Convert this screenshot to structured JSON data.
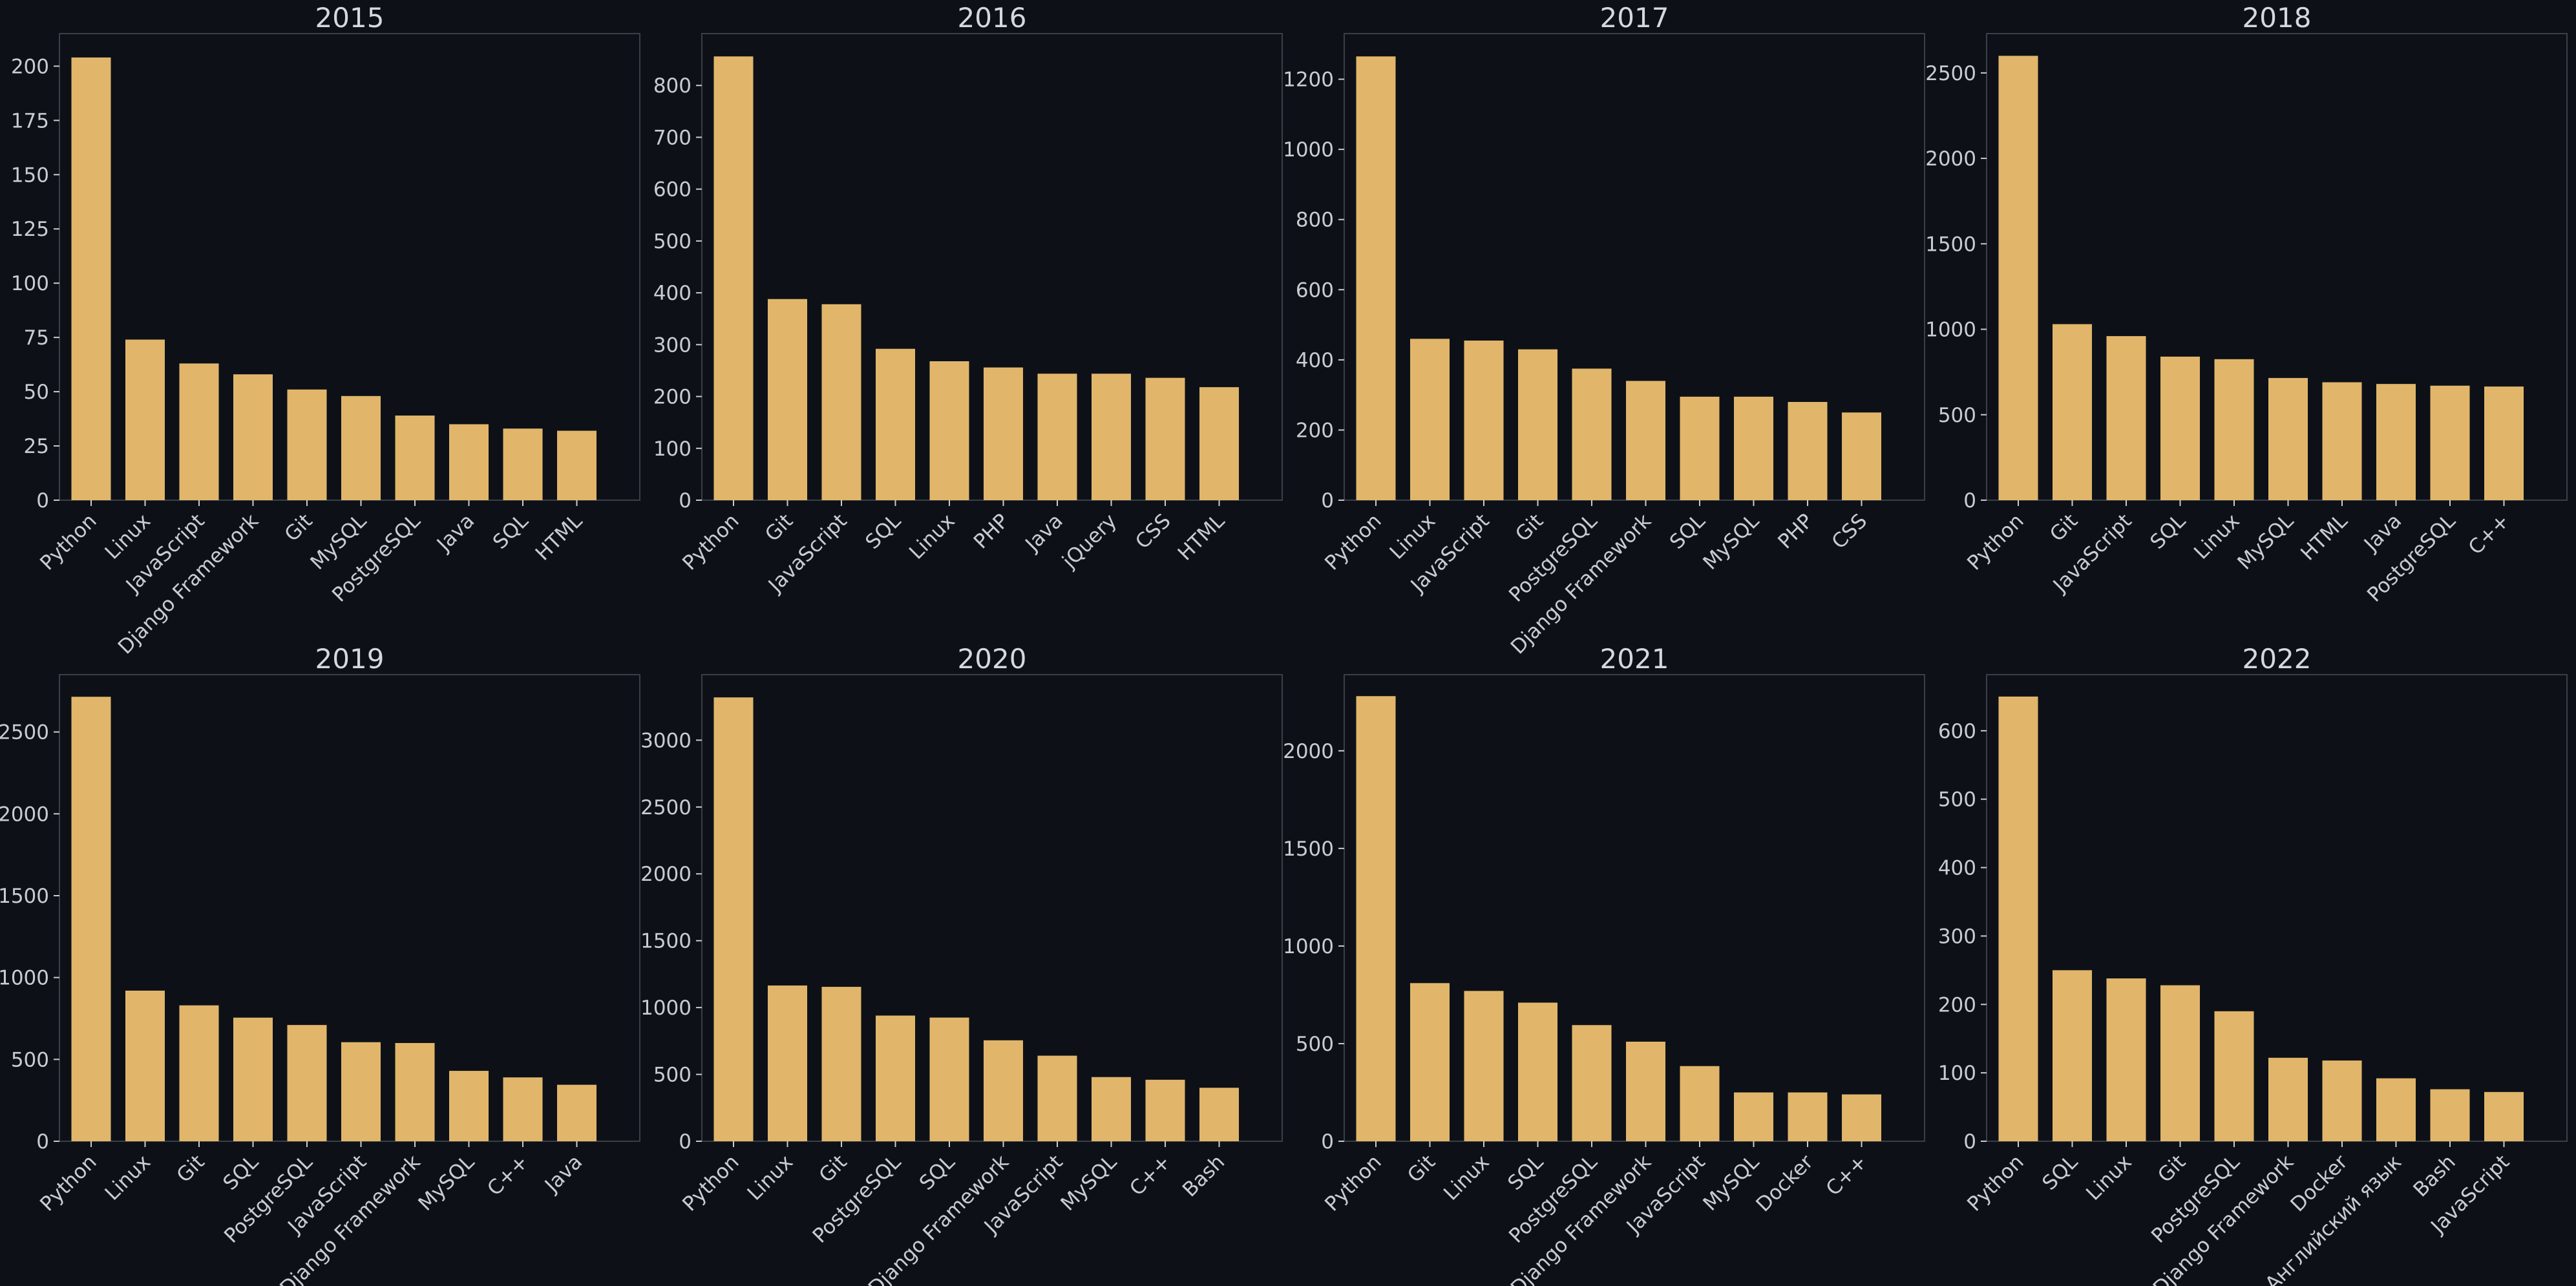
{
  "colors": {
    "background": "#0d1117",
    "bar": "#e1b66b",
    "axis": "#3a3f47",
    "text": "#c9ccd0"
  },
  "chart_data": [
    {
      "type": "bar",
      "title": "2015",
      "xlabel": "",
      "ylabel": "",
      "ylim": [
        0,
        215
      ],
      "yticks": [
        0,
        25,
        50,
        75,
        100,
        125,
        150,
        175,
        200
      ],
      "categories": [
        "Python",
        "Linux",
        "JavaScript",
        "Django Framework",
        "Git",
        "MySQL",
        "PostgreSQL",
        "Java",
        "SQL",
        "HTML"
      ],
      "values": [
        204,
        74,
        63,
        58,
        51,
        48,
        39,
        35,
        33,
        32
      ]
    },
    {
      "type": "bar",
      "title": "2016",
      "xlabel": "",
      "ylabel": "",
      "ylim": [
        0,
        900
      ],
      "yticks": [
        0,
        100,
        200,
        300,
        400,
        500,
        600,
        700,
        800
      ],
      "categories": [
        "Python",
        "Git",
        "JavaScript",
        "SQL",
        "Linux",
        "PHP",
        "Java",
        "jQuery",
        "CSS",
        "HTML"
      ],
      "values": [
        856,
        388,
        378,
        292,
        268,
        256,
        244,
        244,
        236,
        218
      ]
    },
    {
      "type": "bar",
      "title": "2017",
      "xlabel": "",
      "ylabel": "",
      "ylim": [
        0,
        1330
      ],
      "yticks": [
        0,
        200,
        400,
        600,
        800,
        1000,
        1200
      ],
      "categories": [
        "Python",
        "Linux",
        "JavaScript",
        "Git",
        "PostgreSQL",
        "Django Framework",
        "SQL",
        "MySQL",
        "PHP",
        "CSS"
      ],
      "values": [
        1265,
        460,
        455,
        430,
        375,
        340,
        295,
        295,
        280,
        250
      ]
    },
    {
      "type": "bar",
      "title": "2018",
      "xlabel": "",
      "ylabel": "",
      "ylim": [
        0,
        2730
      ],
      "yticks": [
        0,
        500,
        1000,
        1500,
        2000,
        2500
      ],
      "categories": [
        "Python",
        "Git",
        "JavaScript",
        "SQL",
        "Linux",
        "MySQL",
        "HTML",
        "Java",
        "PostgreSQL",
        "C++"
      ],
      "values": [
        2600,
        1030,
        960,
        840,
        825,
        715,
        690,
        680,
        670,
        665
      ]
    },
    {
      "type": "bar",
      "title": "2019",
      "xlabel": "",
      "ylabel": "",
      "ylim": [
        0,
        2850
      ],
      "yticks": [
        0,
        500,
        1000,
        1500,
        2000,
        2500
      ],
      "categories": [
        "Python",
        "Linux",
        "Git",
        "SQL",
        "PostgreSQL",
        "JavaScript",
        "Django Framework",
        "MySQL",
        "C++",
        "Java"
      ],
      "values": [
        2715,
        920,
        830,
        755,
        710,
        605,
        600,
        430,
        390,
        345
      ]
    },
    {
      "type": "bar",
      "title": "2020",
      "xlabel": "",
      "ylabel": "",
      "ylim": [
        0,
        3490
      ],
      "yticks": [
        0,
        500,
        1000,
        1500,
        2000,
        2500,
        3000
      ],
      "categories": [
        "Python",
        "Linux",
        "Git",
        "PostgreSQL",
        "SQL",
        "Django Framework",
        "JavaScript",
        "MySQL",
        "C++",
        "Bash"
      ],
      "values": [
        3320,
        1165,
        1155,
        940,
        925,
        755,
        640,
        480,
        460,
        400
      ]
    },
    {
      "type": "bar",
      "title": "2021",
      "xlabel": "",
      "ylabel": "",
      "ylim": [
        0,
        2390
      ],
      "yticks": [
        0,
        500,
        1000,
        1500,
        2000
      ],
      "categories": [
        "Python",
        "Git",
        "Linux",
        "SQL",
        "PostgreSQL",
        "Django Framework",
        "JavaScript",
        "MySQL",
        "Docker",
        "C++"
      ],
      "values": [
        2280,
        810,
        770,
        710,
        595,
        510,
        385,
        250,
        250,
        240
      ]
    },
    {
      "type": "bar",
      "title": "2022",
      "xlabel": "",
      "ylabel": "",
      "ylim": [
        0,
        682
      ],
      "yticks": [
        0,
        100,
        200,
        300,
        400,
        500,
        600
      ],
      "categories": [
        "Python",
        "SQL",
        "Linux",
        "Git",
        "PostgreSQL",
        "Django Framework",
        "Docker",
        "Английский язык",
        "Bash",
        "JavaScript"
      ],
      "values": [
        650,
        250,
        238,
        228,
        190,
        122,
        118,
        92,
        76,
        72
      ]
    }
  ]
}
